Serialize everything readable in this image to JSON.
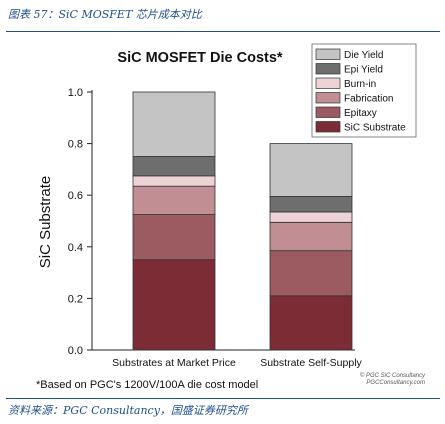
{
  "header": {
    "caption": "图表 57：SiC MOSFET 芯片成本对比"
  },
  "footer": {
    "source": "资料来源：PGC Consultancy，国盛证券研究所",
    "footnote": "*Based on PGC's 1200V/100A die cost model",
    "watermark_line1": "© PGC SiC Consultancy",
    "watermark_line2": "PGCConsultancy.com"
  },
  "colors": {
    "header_text": "#1F4E8C",
    "SiC Substrate": "#7B2C34",
    "Epitaxy": "#9C5B61",
    "Fabrication": "#C08E93",
    "Burn-in": "#EDD3D5",
    "Epi Yield": "#6E6E6E",
    "Die Yield": "#C4C4C4"
  },
  "chart_data": {
    "type": "bar",
    "stacked": true,
    "title": "SiC MOSFET Die Costs*",
    "xlabel": "",
    "ylabel": "SiC Substrate",
    "ylim": [
      0,
      1.0
    ],
    "yticks": [
      "0.0",
      "0.2",
      "0.4",
      "0.6",
      "0.8",
      "1.0"
    ],
    "categories": [
      "Substrates at Market Price",
      "Substrate Self-Supply"
    ],
    "series": [
      {
        "name": "SiC Substrate",
        "values": [
          0.35,
          0.21
        ]
      },
      {
        "name": "Epitaxy",
        "values": [
          0.175,
          0.175
        ]
      },
      {
        "name": "Fabrication",
        "values": [
          0.11,
          0.11
        ]
      },
      {
        "name": "Burn-in",
        "values": [
          0.04,
          0.04
        ]
      },
      {
        "name": "Epi Yield",
        "values": [
          0.075,
          0.06
        ]
      },
      {
        "name": "Die Yield",
        "values": [
          0.25,
          0.205
        ]
      }
    ],
    "legend": {
      "placement": "top-right",
      "order": [
        "Die Yield",
        "Epi Yield",
        "Burn-in",
        "Fabrication",
        "Epitaxy",
        "SiC Substrate"
      ]
    },
    "grid": false
  }
}
